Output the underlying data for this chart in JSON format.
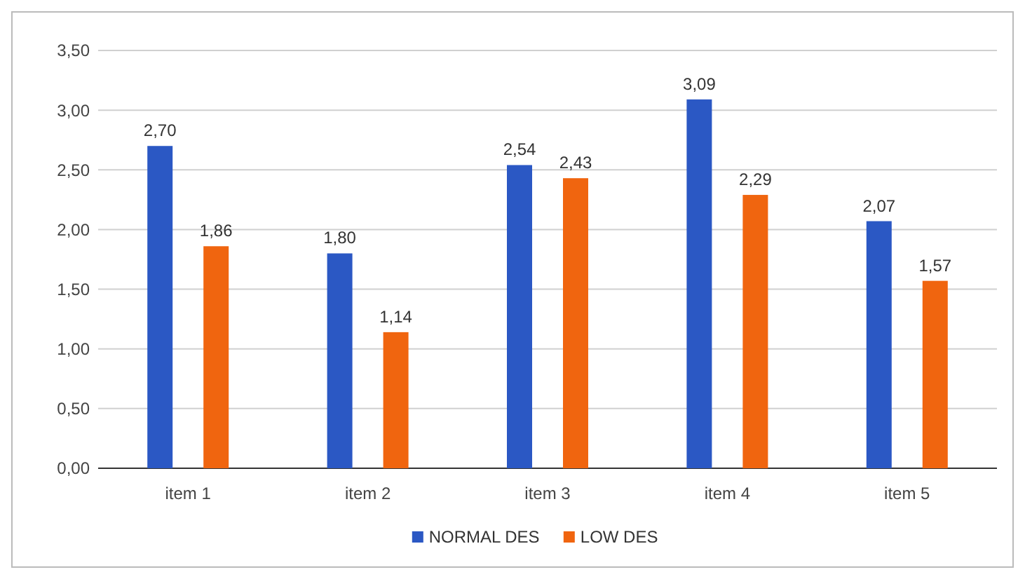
{
  "chart_data": {
    "type": "bar",
    "categories": [
      "item 1",
      "item 2",
      "item 3",
      "item 4",
      "item 5"
    ],
    "series": [
      {
        "name": "NORMAL DES",
        "color": "#2b58c4",
        "values": [
          2.7,
          1.8,
          2.54,
          3.09,
          2.07
        ],
        "value_labels": [
          "2,70",
          "1,80",
          "2,54",
          "3,09",
          "2,07"
        ]
      },
      {
        "name": "LOW DES",
        "color": "#f0650f",
        "values": [
          1.86,
          1.14,
          2.43,
          2.29,
          1.57
        ],
        "value_labels": [
          "1,86",
          "1,14",
          "2,43",
          "2,29",
          "1,57"
        ]
      }
    ],
    "ylim": [
      0,
      3.5
    ],
    "yticks": [
      {
        "value": 0,
        "label": "0,00"
      },
      {
        "value": 0.5,
        "label": "0,50"
      },
      {
        "value": 1,
        "label": "1,00"
      },
      {
        "value": 1.5,
        "label": "1,50"
      },
      {
        "value": 2,
        "label": "2,00"
      },
      {
        "value": 2.5,
        "label": "2,50"
      },
      {
        "value": 3,
        "label": "3,00"
      },
      {
        "value": 3.5,
        "label": "3,50"
      }
    ],
    "grid": "y",
    "legend": "bottom"
  }
}
